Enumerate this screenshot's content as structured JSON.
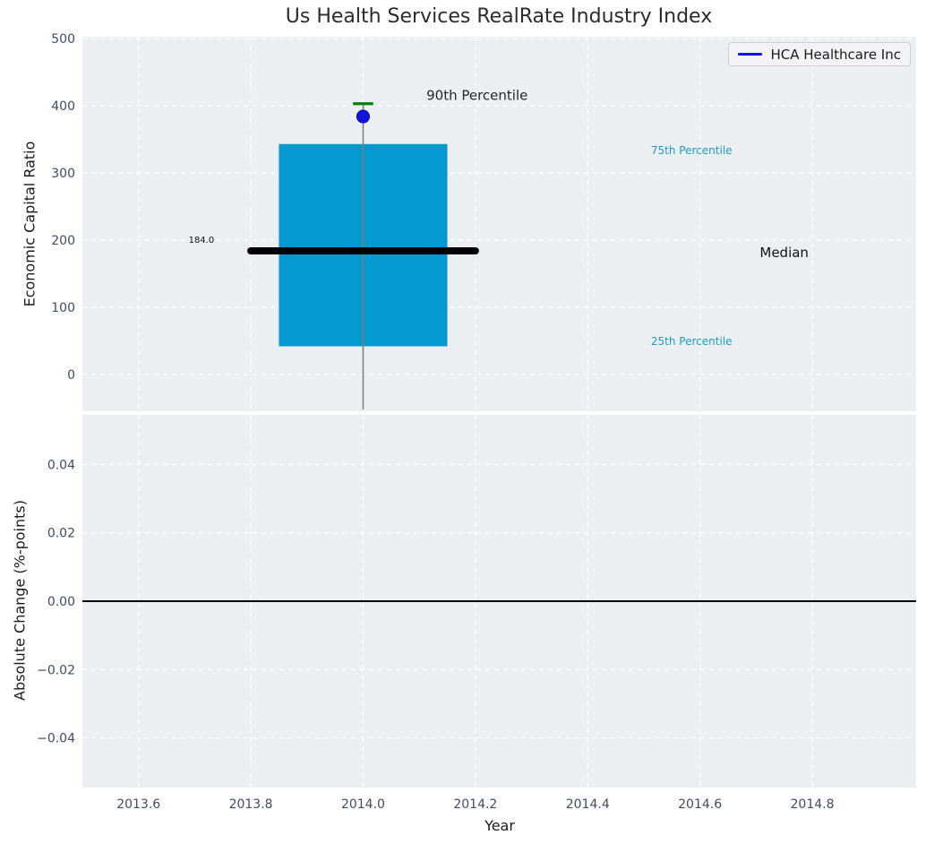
{
  "chart_data": {
    "type": "box",
    "title": "Us Health Services RealRate Industry Index",
    "xlabel": "Year",
    "xlim": [
      2013.5,
      2014.985
    ],
    "x_ticks": [
      {
        "v": 2013.6,
        "label": "2013.6"
      },
      {
        "v": 2013.8,
        "label": "2013.8"
      },
      {
        "v": 2014.0,
        "label": "2014.0"
      },
      {
        "v": 2014.2,
        "label": "2014.2"
      },
      {
        "v": 2014.4,
        "label": "2014.4"
      },
      {
        "v": 2014.6,
        "label": "2014.6"
      },
      {
        "v": 2014.8,
        "label": "2014.8"
      }
    ],
    "grid": true,
    "legend": {
      "label": "HCA Healthcare Inc",
      "line_color": "#1414e0",
      "position": "upper right"
    },
    "top_panel": {
      "ylabel": "Economic Capital Ratio",
      "ylim": [
        -54.7,
        502.7
      ],
      "y_ticks": [
        {
          "v": 0,
          "label": "0"
        },
        {
          "v": 100,
          "label": "100"
        },
        {
          "v": 200,
          "label": "200"
        },
        {
          "v": 300,
          "label": "300"
        },
        {
          "v": 400,
          "label": "400"
        },
        {
          "v": 500,
          "label": "500"
        }
      ],
      "box": {
        "x": 2014.0,
        "q1": 42,
        "median": 184.0,
        "q3": 343,
        "p90": 403,
        "whisker_low": -52,
        "box_half_width": 0.15,
        "median_half_width": 0.2,
        "cap_half_width": 0.018,
        "box_color": "#0499cf",
        "median_color": "#000000",
        "cap_color": "#008000",
        "whisker_color": "#7f7f7f"
      },
      "company_point": {
        "name": "HCA Healthcare Inc",
        "x": 2014.0,
        "y": 384,
        "color": "#1414e0"
      },
      "annotations": [
        {
          "text": "90th Percentile",
          "x": 2014.203,
          "y": 416,
          "color": "#262626",
          "size": 15
        },
        {
          "text": "75th Percentile",
          "x": 2014.585,
          "y": 334,
          "color": "#1d9bc9",
          "size": 12
        },
        {
          "text": "Median",
          "x": 2014.75,
          "y": 182,
          "color": "#111111",
          "size": 15
        },
        {
          "text": "25th Percentile",
          "x": 2014.585,
          "y": 50,
          "color": "#1d9bc9",
          "size": 12
        },
        {
          "text": "184.0",
          "x": 2013.712,
          "y": 201,
          "color": "#111111",
          "size": 10
        }
      ]
    },
    "bottom_panel": {
      "ylabel": "Absolute Change (%-points)",
      "ylim": [
        -0.0545,
        0.0545
      ],
      "y_ticks": [
        {
          "v": 0.04,
          "label": "0.04"
        },
        {
          "v": 0.02,
          "label": "0.02"
        },
        {
          "v": 0.0,
          "label": "0.00"
        },
        {
          "v": -0.02,
          "label": "−0.02"
        },
        {
          "v": -0.04,
          "label": "−0.04"
        }
      ],
      "zero_line": {
        "y": 0.0,
        "color": "#000000"
      }
    },
    "colors": {
      "panel_bg": "#eceff1",
      "grid": "#ffffff",
      "tick_label": "#3d4d63",
      "figure_bg": "#ffffff"
    }
  }
}
